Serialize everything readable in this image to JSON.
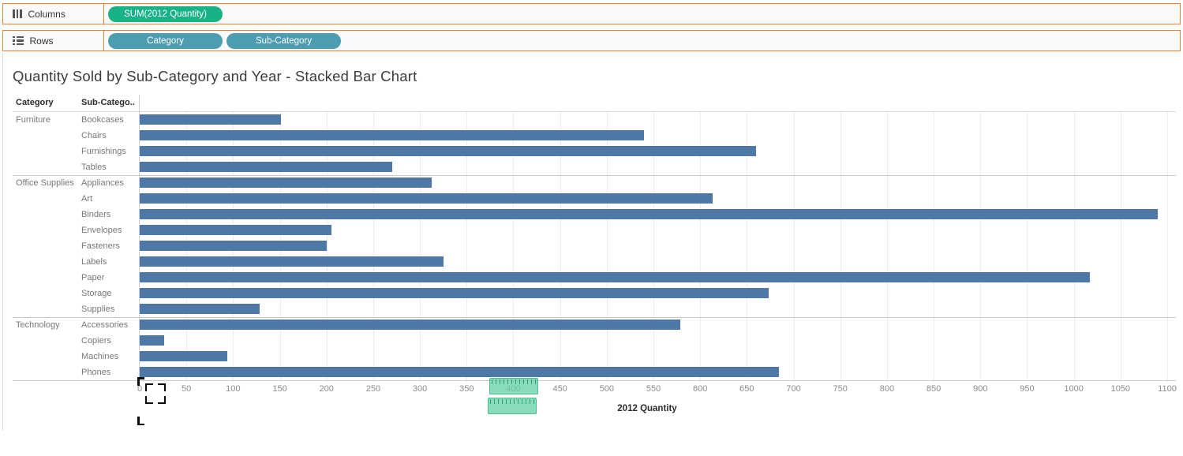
{
  "shelves": {
    "columns": {
      "label": "Columns",
      "pills": [
        {
          "label": "SUM(2012 Quantity)",
          "type": "measure"
        }
      ]
    },
    "rows": {
      "label": "Rows",
      "pills": [
        {
          "label": "Category",
          "type": "dimension"
        },
        {
          "label": "Sub-Category",
          "type": "dimension"
        }
      ]
    }
  },
  "sheet": {
    "title": "Quantity Sold by Sub-Category and Year - Stacked Bar Chart"
  },
  "chart_data": {
    "type": "bar",
    "orientation": "horizontal",
    "column_headers": [
      "Category",
      "Sub-Catego.."
    ],
    "groups": [
      {
        "category": "Furniture",
        "rows": [
          {
            "label": "Bookcases",
            "value": 151
          },
          {
            "label": "Chairs",
            "value": 540
          },
          {
            "label": "Furnishings",
            "value": 660
          },
          {
            "label": "Tables",
            "value": 270
          }
        ]
      },
      {
        "category": "Office Supplies",
        "rows": [
          {
            "label": "Appliances",
            "value": 313
          },
          {
            "label": "Art",
            "value": 613
          },
          {
            "label": "Binders",
            "value": 1090
          },
          {
            "label": "Envelopes",
            "value": 205
          },
          {
            "label": "Fasteners",
            "value": 200
          },
          {
            "label": "Labels",
            "value": 325
          },
          {
            "label": "Paper",
            "value": 1017
          },
          {
            "label": "Storage",
            "value": 673
          },
          {
            "label": "Supplies",
            "value": 128
          }
        ]
      },
      {
        "category": "Technology",
        "rows": [
          {
            "label": "Accessories",
            "value": 579
          },
          {
            "label": "Copiers",
            "value": 26
          },
          {
            "label": "Machines",
            "value": 94
          },
          {
            "label": "Phones",
            "value": 684
          }
        ]
      }
    ],
    "xlabel": "2012 Quantity",
    "xlim": [
      0,
      1100
    ],
    "tick_step": 50,
    "grid": true,
    "legend": "none",
    "bar_color": "#4e79a7"
  },
  "colors": {
    "measure_pill": "#18b287",
    "dimension_pill": "#4d9db2",
    "shelf_border": "#e8823d",
    "bar": "#4e79a7",
    "ruler_cursor": "#68d2a8"
  }
}
